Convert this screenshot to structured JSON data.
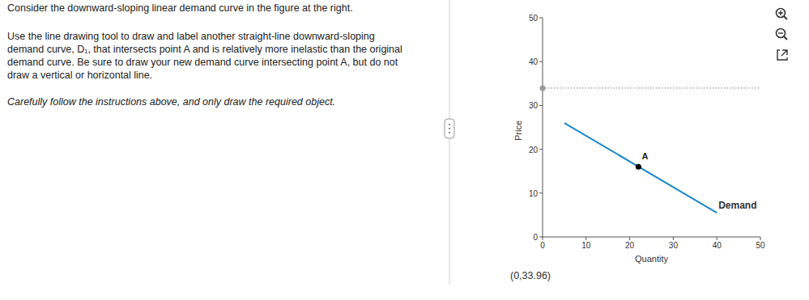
{
  "instructions": {
    "paragraphs": [
      [
        "Consider the downward-sloping linear demand curve in the figure at the right."
      ],
      [
        "Use the line drawing tool to draw and label another straight-line downward-sloping",
        "demand curve, D₁, that intersects point A and is relatively more inelastic than the original",
        "demand curve. Be sure to draw your new demand curve intersecting point A, but do not",
        "draw a vertical or horizontal line."
      ]
    ],
    "note": "Carefully follow the instructions above, and only draw the required object."
  },
  "chart_data": {
    "type": "line",
    "xlabel": "Quantity",
    "ylabel": "Price",
    "xlim": [
      0,
      50
    ],
    "ylim": [
      0,
      50
    ],
    "xticks": [
      0,
      10,
      20,
      30,
      40,
      50
    ],
    "yticks": [
      0,
      10,
      20,
      30,
      40,
      50
    ],
    "series": [
      {
        "name": "Demand",
        "color": "#1f86c8",
        "x": [
          5,
          40
        ],
        "values": [
          26,
          5.5
        ]
      }
    ],
    "annotations": [
      {
        "label": "A",
        "x": 22,
        "y": 16,
        "color": "#000000"
      }
    ],
    "guide": {
      "x": [
        0,
        50
      ],
      "values": [
        33.96,
        33.96
      ],
      "color": "#9a9a9a",
      "line_style": "dotted"
    },
    "readout": "(0,33.96)"
  }
}
